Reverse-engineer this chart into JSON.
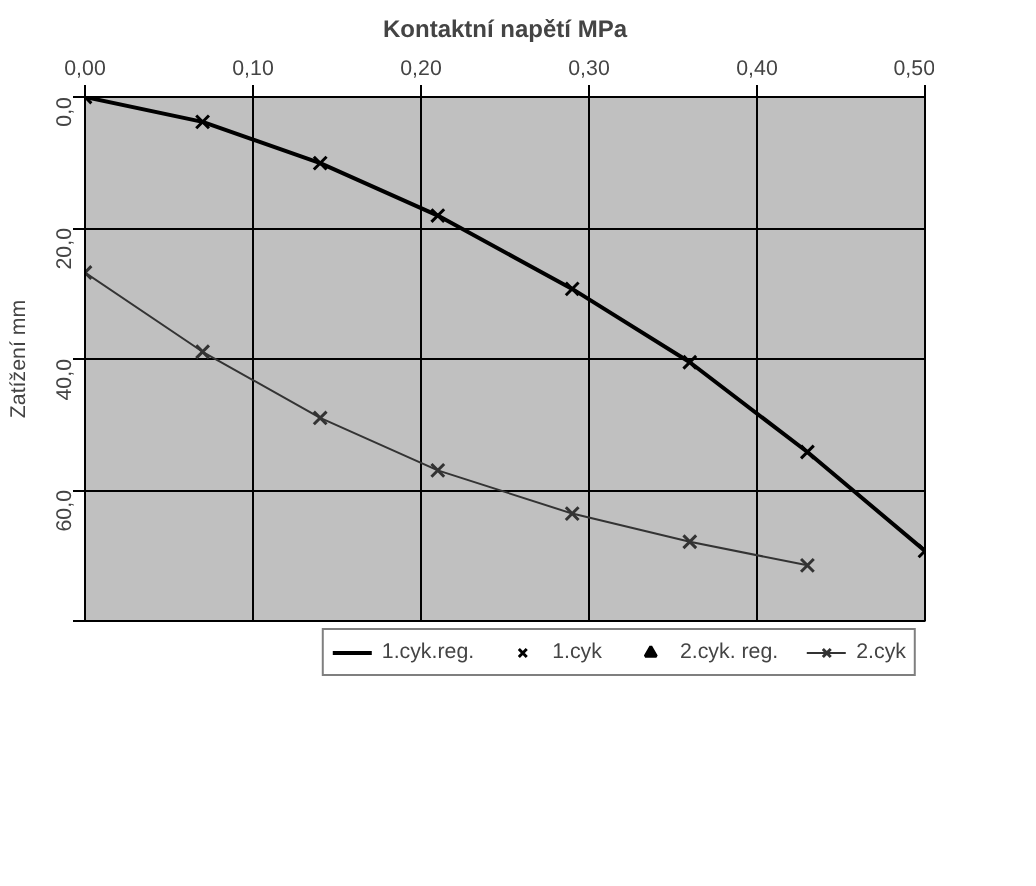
{
  "chart_data": {
    "type": "line",
    "title": "Kontaktní napětí MPa",
    "ylabel": "Zatížení mm",
    "x": [
      0.0,
      0.07,
      0.14,
      0.21,
      0.29,
      0.36,
      0.43,
      0.5
    ],
    "series": [
      {
        "name": "1.cyk.reg.",
        "marker": "none",
        "color": "#000000",
        "values": [
          0.0,
          3.8,
          10.1,
          18.1,
          29.3,
          40.5,
          54.2,
          69.3
        ]
      },
      {
        "name": "1.cyk",
        "type": "scatter",
        "marker": "cross",
        "color": "#000000",
        "values": [
          0.0,
          3.8,
          10.1,
          18.1,
          29.3,
          40.5,
          54.2,
          69.3
        ]
      },
      {
        "name": "2.cyk. reg.",
        "type": "scatter",
        "marker": "triangle",
        "color": "#000000",
        "values": [
          null,
          null,
          null,
          null,
          null,
          null,
          null,
          null
        ]
      },
      {
        "name": "2.cyk",
        "marker": "cross",
        "color": "#333333",
        "values": [
          26.8,
          38.9,
          49.0,
          57.0,
          63.6,
          67.9,
          71.5,
          null
        ]
      }
    ],
    "xlim": [
      0.0,
      0.5
    ],
    "xticks": [
      {
        "value": 0.0,
        "label": "0,00"
      },
      {
        "value": 0.1,
        "label": "0,10"
      },
      {
        "value": 0.2,
        "label": "0,20"
      },
      {
        "value": 0.3,
        "label": "0,30"
      },
      {
        "value": 0.4,
        "label": "0,40"
      },
      {
        "value": 0.5,
        "label": "0,50"
      }
    ],
    "ylim": [
      80,
      0
    ],
    "yticks": [
      {
        "value": 0,
        "label": "0,0"
      },
      {
        "value": 20,
        "label": "20,0"
      },
      {
        "value": 40,
        "label": "40,0"
      },
      {
        "value": 60,
        "label": "60,0"
      },
      {
        "value": 80,
        "label": null
      }
    ],
    "grid": true,
    "legend": "bottom"
  }
}
